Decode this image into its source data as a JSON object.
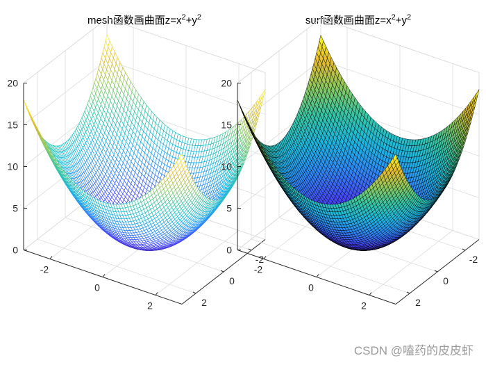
{
  "figure": {
    "watermark": "CSDN @嗑药的皮皮虾"
  },
  "chart_data": [
    {
      "type": "surface-mesh",
      "title": "mesh函数画曲面z=x²+y²",
      "title_parts": {
        "prefix": "mesh函数画曲面z=x",
        "sup1": "2",
        "mid": "+y",
        "sup2": "2"
      },
      "function": "z = x^2 + y^2",
      "x_range": [
        -3,
        3
      ],
      "y_range": [
        -3,
        3
      ],
      "grid_steps": 60,
      "zlim": [
        0,
        20
      ],
      "z_ticks": [
        0,
        5,
        10,
        15,
        20
      ],
      "x_ticks": [
        -2,
        0,
        2
      ],
      "y_ticks": [
        -2,
        0,
        2
      ],
      "colormap": [
        "#3e26a8",
        "#4743f8",
        "#2e87f7",
        "#1bb6e0",
        "#35c6a5",
        "#8cca5f",
        "#e8ba2f",
        "#f9fb15"
      ],
      "edge_color": "colormap",
      "face_color": "#ffffff",
      "grid": true
    },
    {
      "type": "surface-surf",
      "title": "surf函数画曲面z=x²+y²",
      "title_parts": {
        "prefix": "surf函数画曲面z=x",
        "sup1": "2",
        "mid": "+y",
        "sup2": "2"
      },
      "function": "z = x^2 + y^2",
      "x_range": [
        -3,
        3
      ],
      "y_range": [
        -3,
        3
      ],
      "grid_steps": 60,
      "zlim": [
        0,
        20
      ],
      "z_ticks": [
        0,
        5,
        10,
        15,
        20
      ],
      "x_ticks": [
        -2,
        0,
        2
      ],
      "y_ticks": [
        -2,
        0,
        2
      ],
      "colormap": [
        "#3e26a8",
        "#4743f8",
        "#2e87f7",
        "#1bb6e0",
        "#35c6a5",
        "#8cca5f",
        "#e8ba2f",
        "#f9fb15"
      ],
      "edge_color": "#000000",
      "face_color": "colormap",
      "grid": true
    }
  ]
}
